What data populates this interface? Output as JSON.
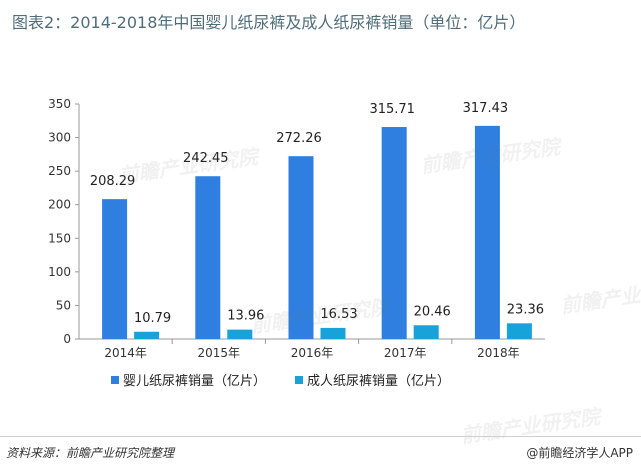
{
  "title": "图表2：2014-2018年中国婴儿纸尿裤及成人纸尿裤销量（单位：亿片）",
  "footer": {
    "source": "资料来源：前瞻产业研究院整理",
    "brand": "@前瞻经济学人APP"
  },
  "watermark": "前瞻产业研究院",
  "colors": {
    "baby": "#2e7fe0",
    "adult": "#17a3da",
    "axis": "#9a9a9a"
  },
  "chart_data": {
    "type": "bar",
    "categories": [
      "2014年",
      "2015年",
      "2016年",
      "2017年",
      "2018年"
    ],
    "series": [
      {
        "name": "婴儿纸尿裤销量（亿片）",
        "values": [
          208.29,
          242.45,
          272.26,
          315.71,
          317.43
        ]
      },
      {
        "name": "成人纸尿裤销量（亿片）",
        "values": [
          10.79,
          13.96,
          16.53,
          20.46,
          23.36
        ]
      }
    ],
    "ylim": [
      0,
      350
    ],
    "yticks": [
      0,
      50,
      100,
      150,
      200,
      250,
      300,
      350
    ],
    "grid": false,
    "legend": "bottom"
  }
}
